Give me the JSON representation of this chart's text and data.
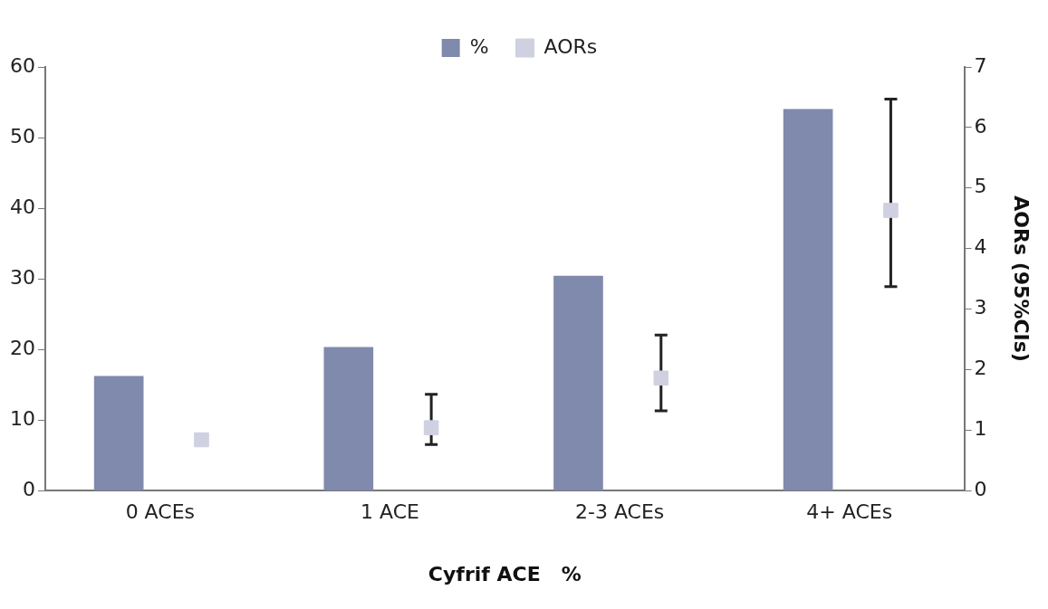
{
  "chart_data": {
    "type": "bar",
    "xlabel": "Cyfrif ACE   %",
    "y2label": "AORs (95%CIs)",
    "categories": [
      "0 ACEs",
      "1 ACE",
      "2-3 ACEs",
      "4+ ACEs"
    ],
    "series": [
      {
        "name": "%",
        "color": "#7f8aad",
        "values": [
          16.2,
          20.3,
          30.4,
          54.0
        ]
      },
      {
        "name": "AORs",
        "type": "scatter",
        "axis": "y2",
        "color": "#cfd0e0",
        "values": [
          0.84,
          1.04,
          1.86,
          4.63
        ],
        "errors": [
          null,
          [
            0.76,
            1.59
          ],
          [
            1.32,
            2.57
          ],
          [
            3.37,
            6.47
          ]
        ]
      }
    ],
    "ylim": [
      0,
      60
    ],
    "yticks": [
      0,
      10,
      20,
      30,
      40,
      50,
      60
    ],
    "y2lim": [
      0,
      7
    ],
    "y2ticks": [
      0,
      1,
      2,
      3,
      4,
      5,
      6,
      7
    ],
    "grid": false,
    "legend": "top",
    "marker": "square"
  }
}
